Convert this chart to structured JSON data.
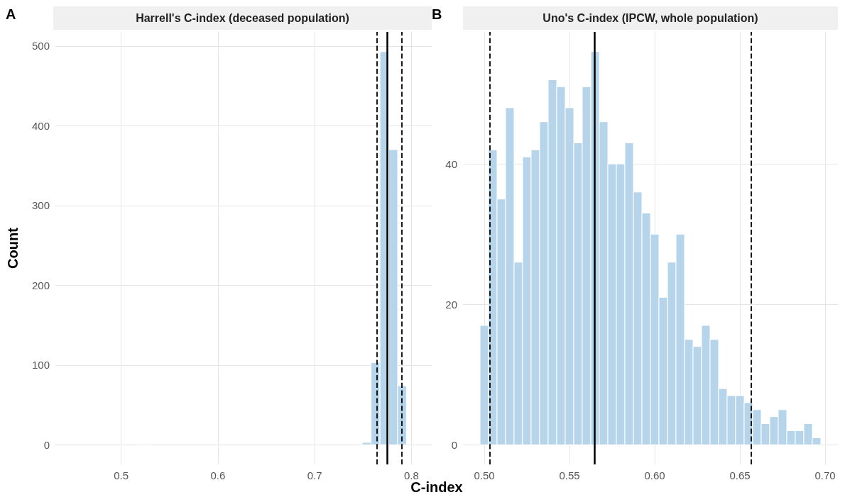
{
  "chart_data": [
    {
      "type": "histogram",
      "title": "Harrell's C-index (deceased population)",
      "xlabel": "C-index",
      "ylabel": "Count",
      "annotations": [
        "A"
      ],
      "bins": [
        0.4472,
        0.4564,
        0.4655,
        0.4747,
        0.4838,
        0.493,
        0.5021,
        0.5113,
        0.5204,
        0.5296,
        0.5387,
        0.5479,
        0.557,
        0.5662,
        0.5753,
        0.5845,
        0.5936,
        0.6028,
        0.6119,
        0.6211,
        0.6302,
        0.6394,
        0.6485,
        0.6577,
        0.6668,
        0.676,
        0.6851,
        0.6943,
        0.7034,
        0.7126,
        0.7217,
        0.7309,
        0.74,
        0.7492,
        0.7583,
        0.7675,
        0.7766,
        0.7858,
        0.7949
      ],
      "values": [
        0,
        0,
        0,
        0,
        0,
        0,
        0,
        0,
        1,
        0,
        0,
        0,
        0,
        0,
        0,
        0,
        0,
        0,
        0,
        0,
        0,
        0,
        0,
        0,
        0,
        0,
        0,
        0,
        0,
        0,
        0,
        0,
        0,
        3,
        103,
        493,
        370,
        74
      ],
      "color": "#b6d5ea",
      "xlim": [
        0.432,
        0.821
      ],
      "xticks": [
        0.5,
        0.6,
        0.7,
        0.8
      ],
      "ylim": [
        -24.65,
        517.65
      ],
      "yticks": [
        0,
        100,
        200,
        300,
        400,
        500
      ],
      "grid": true,
      "ref_lines": [
        {
          "axis": "x",
          "value": 0.764,
          "color": "#000000",
          "line_style": "dashed"
        },
        {
          "axis": "x",
          "value": 0.775,
          "color": "#000000",
          "line_style": "solid"
        },
        {
          "axis": "x",
          "value": 0.79,
          "color": "#000000",
          "line_style": "dashed"
        }
      ]
    },
    {
      "type": "histogram",
      "title": "Uno's C-index (IPCW, whole population)",
      "annotations": [
        "B"
      ],
      "bins": [
        0.4975,
        0.5025,
        0.5075,
        0.5125,
        0.5175,
        0.5225,
        0.5275,
        0.5325,
        0.5375,
        0.5425,
        0.5475,
        0.5525,
        0.5575,
        0.5625,
        0.5675,
        0.5725,
        0.5775,
        0.5825,
        0.5875,
        0.5925,
        0.5975,
        0.6025,
        0.6075,
        0.6125,
        0.6175,
        0.6225,
        0.6275,
        0.6325,
        0.6375,
        0.6425,
        0.6475,
        0.6525,
        0.6575,
        0.6625,
        0.6675,
        0.6725,
        0.6775,
        0.6825,
        0.6875,
        0.6925,
        0.6975
      ],
      "values": [
        17,
        42,
        35,
        48,
        26,
        41,
        42,
        46,
        52,
        51,
        48,
        43,
        51,
        56,
        46,
        40,
        40,
        43,
        36,
        33,
        30,
        21,
        26,
        30,
        15,
        14,
        17,
        15,
        8,
        7,
        7,
        6,
        5,
        3,
        4,
        5,
        2,
        2,
        3,
        1
      ],
      "color": "#b6d5ea",
      "xlim": [
        0.4875,
        0.7075
      ],
      "xticks": [
        {
          "value": 0.5,
          "label": "0.50"
        },
        {
          "value": 0.55,
          "label": "0.55"
        },
        {
          "value": 0.6,
          "label": "0.60"
        },
        {
          "value": 0.65,
          "label": "0.65"
        },
        {
          "value": 0.7,
          "label": "0.70"
        }
      ],
      "ylim": [
        -2.8,
        58.8
      ],
      "yticks": [
        0,
        20,
        40
      ],
      "grid": true,
      "ref_lines": [
        {
          "axis": "x",
          "value": 0.5034,
          "color": "#000000",
          "line_style": "dashed"
        },
        {
          "axis": "x",
          "value": 0.5648,
          "color": "#000000",
          "line_style": "solid"
        },
        {
          "axis": "x",
          "value": 0.6566,
          "color": "#000000",
          "line_style": "dashed"
        }
      ]
    }
  ]
}
